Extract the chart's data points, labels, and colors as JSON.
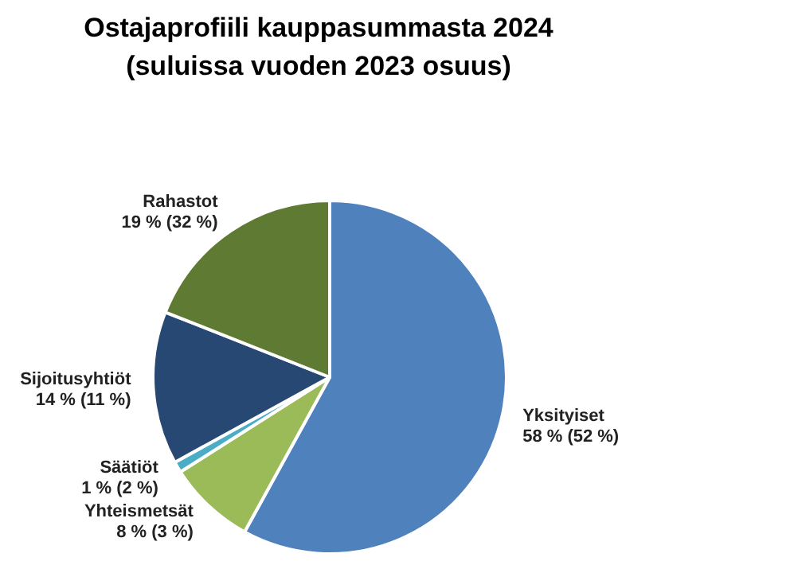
{
  "chart_data": {
    "type": "pie",
    "title": "Ostajaprofiili kauppasummasta 2024",
    "subtitle": "(suluissa vuoden 2023 osuus)",
    "categories": [
      "Yksityiset",
      "Yhteismetsät",
      "Säätiöt",
      "Sijoitusyhtiöt",
      "Rahastot"
    ],
    "values": [
      58,
      8,
      1,
      14,
      19
    ],
    "colors": [
      "#4f81bd",
      "#9bbb59",
      "#4bacc6",
      "#264872",
      "#5f7a32"
    ],
    "value_labels": [
      "58 % (52 %)",
      "8 % (3 %)",
      "1 % (2 %)",
      "14 % (11 %)",
      "19 % (32 %)"
    ]
  }
}
